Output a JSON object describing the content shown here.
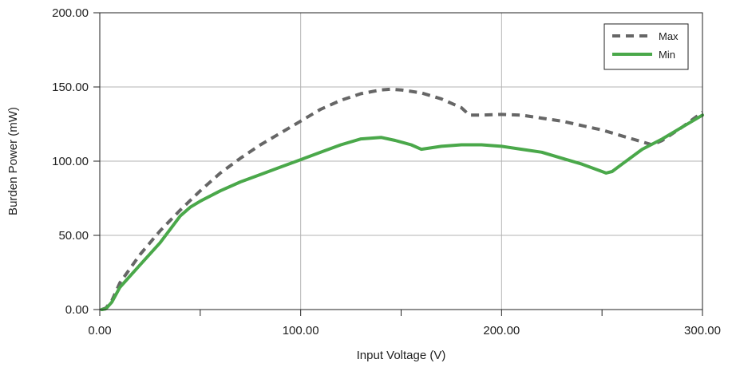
{
  "chart_data": {
    "type": "line",
    "title": "",
    "xlabel": "Input Voltage (V)",
    "ylabel": "Burden Power (mW)",
    "xlim": [
      0,
      300
    ],
    "ylim": [
      0,
      200
    ],
    "x_ticks": [
      "0.00",
      "100.00",
      "200.00",
      "300.00"
    ],
    "y_ticks": [
      "0.00",
      "50.00",
      "100.00",
      "150.00",
      "200.00"
    ],
    "grid": true,
    "legend_position": "top-right",
    "series": [
      {
        "name": "Max",
        "color": "#666666",
        "style": "dashed",
        "x": [
          1,
          3,
          6,
          10,
          20,
          30,
          40,
          50,
          60,
          70,
          80,
          90,
          100,
          110,
          120,
          130,
          140,
          145,
          150,
          160,
          170,
          180,
          184,
          190,
          200,
          210,
          220,
          230,
          240,
          250,
          260,
          270,
          275,
          280,
          290,
          300
        ],
        "y": [
          0,
          1,
          6,
          18,
          37,
          53,
          67,
          80,
          92,
          102,
          111,
          119,
          127,
          135,
          141,
          145.5,
          148,
          148.5,
          148,
          146,
          142,
          136,
          131,
          131,
          131.5,
          131,
          129,
          127,
          124,
          121,
          117,
          113,
          111,
          114,
          123,
          133
        ]
      },
      {
        "name": "Min",
        "color": "#4aa84a",
        "style": "solid",
        "x": [
          1,
          3,
          6,
          10,
          20,
          30,
          40,
          45,
          50,
          60,
          70,
          80,
          90,
          100,
          110,
          120,
          130,
          140,
          147,
          155,
          160,
          170,
          180,
          190,
          200,
          210,
          220,
          230,
          240,
          250,
          252,
          255,
          260,
          270,
          280,
          290,
          300
        ],
        "y": [
          0,
          0.5,
          5,
          15,
          30,
          45,
          63,
          69,
          73,
          80,
          86,
          91,
          96,
          101,
          106,
          111,
          115,
          116,
          114,
          111,
          108,
          110,
          111,
          111,
          110,
          108,
          106,
          102,
          98,
          93,
          92,
          93,
          98,
          108,
          115,
          123,
          131
        ]
      }
    ]
  }
}
